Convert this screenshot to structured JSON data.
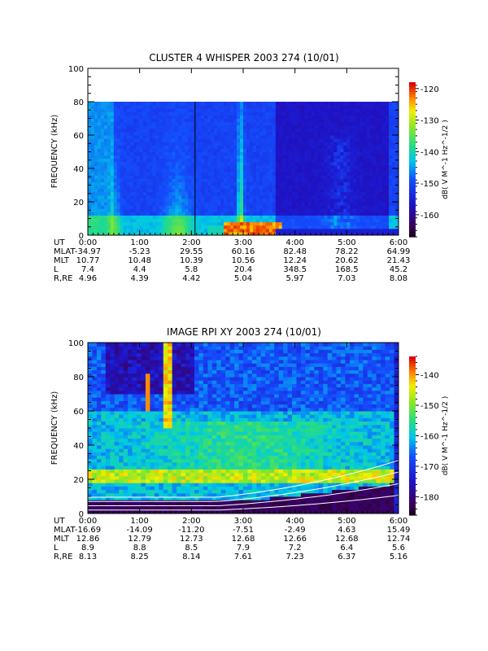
{
  "chart_data": [
    {
      "type": "heatmap",
      "title": "CLUSTER 4 WHISPER 2003 274 (10/01)",
      "ylabel": "FREQUENCY (kHz)",
      "ylim": [
        0,
        100
      ],
      "yticks": [
        "0",
        "20",
        "40",
        "60",
        "80",
        "100"
      ],
      "xlim": [
        0,
        6
      ],
      "colorbar": {
        "label": "dB( V M^-1 Hz^-1/2 )",
        "range": [
          -167,
          -118
        ],
        "ticks": [
          "-120",
          "-130",
          "-140",
          "-150",
          "-160"
        ]
      },
      "ephemeris": {
        "labels": [
          "UT",
          "MLAT",
          "MLT",
          "L",
          "R,RE"
        ],
        "rows": [
          [
            "0:00",
            "1:00",
            "2:00",
            "3:00",
            "4:00",
            "5:00",
            "6:00"
          ],
          [
            "-34.97",
            "-5.23",
            "29.55",
            "60.16",
            "82.48",
            "78.22",
            "64.99"
          ],
          [
            "10.77",
            "10.48",
            "10.39",
            "10.56",
            "12.24",
            "20.62",
            "21.43"
          ],
          [
            "7.4",
            "4.4",
            "5.8",
            "20.4",
            "348.5",
            "168.5",
            "45.2"
          ],
          [
            "4.96",
            "4.39",
            "4.42",
            "5.04",
            "5.97",
            "7.03",
            "8.08"
          ]
        ]
      }
    },
    {
      "type": "heatmap",
      "title": "IMAGE RPI XY 2003 274 (10/01)",
      "ylabel": "FREQUENCY (kHz)",
      "ylim": [
        0,
        100
      ],
      "yticks": [
        "0",
        "20",
        "40",
        "60",
        "80",
        "100"
      ],
      "xlim": [
        0,
        6
      ],
      "colorbar": {
        "label": "dB( V M^-1 Hz^-1/2 )",
        "range": [
          -186,
          -134
        ],
        "ticks": [
          "-140",
          "-150",
          "-160",
          "-170",
          "-180"
        ]
      },
      "ephemeris": {
        "labels": [
          "UT",
          "MLAT",
          "MLT",
          "L",
          "R,RE"
        ],
        "rows": [
          [
            "0:00",
            "1:00",
            "2:00",
            "3:00",
            "4:00",
            "5:00",
            "6:00"
          ],
          [
            "-16.69",
            "-14.09",
            "-11.20",
            "-7.51",
            "-2.49",
            "4.63",
            "15.49"
          ],
          [
            "12.86",
            "12.79",
            "12.73",
            "12.68",
            "12.66",
            "12.68",
            "12.74"
          ],
          [
            "8.9",
            "8.8",
            "8.5",
            "7.9",
            "7.2",
            "6.4",
            "5.6"
          ],
          [
            "8.13",
            "8.25",
            "8.14",
            "7.61",
            "7.23",
            "6.37",
            "5.16"
          ]
        ]
      }
    }
  ]
}
